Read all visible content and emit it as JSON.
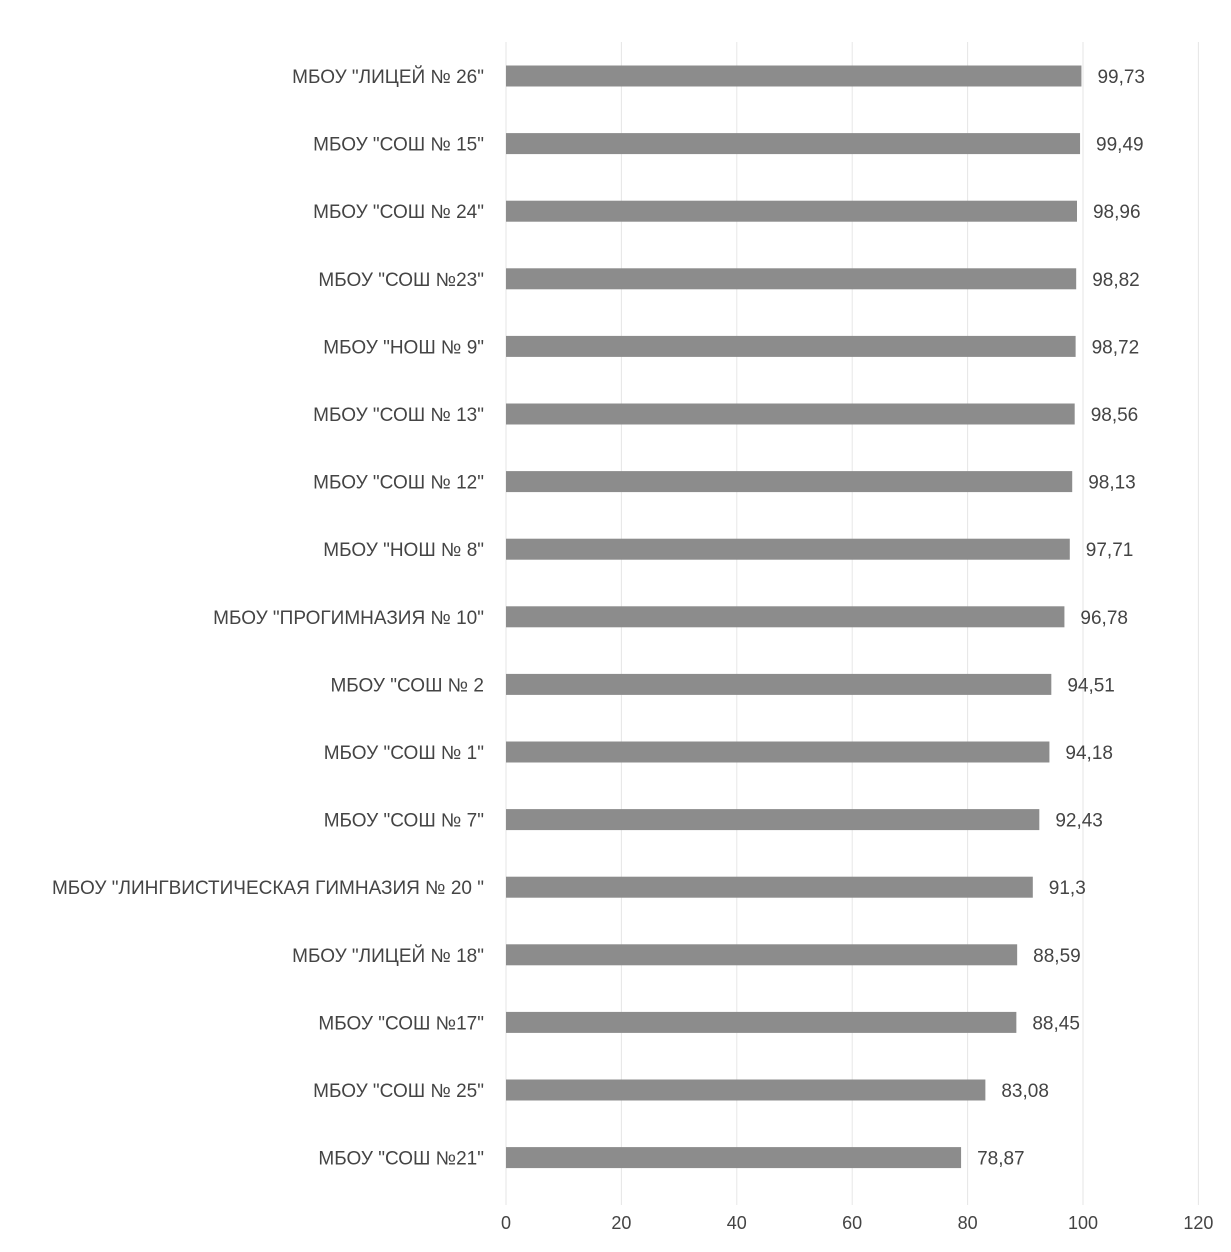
{
  "chart_data": {
    "type": "bar",
    "orientation": "horizontal",
    "title": "",
    "xlabel": "",
    "ylabel": "",
    "xlim": [
      0,
      120
    ],
    "x_ticks": [
      "0",
      "20",
      "40",
      "60",
      "80",
      "100",
      "120"
    ],
    "grid": true,
    "legend": "none",
    "bar_color": "#8c8c8c",
    "categories": [
      "МБОУ \"ЛИЦЕЙ № 26\"",
      "МБОУ \"СОШ № 15\"",
      "МБОУ \"СОШ № 24\"",
      "МБОУ \"СОШ №23\"",
      "МБОУ \"НОШ № 9\"",
      "МБОУ \"СОШ № 13\"",
      "МБОУ \"СОШ № 12\"",
      "МБОУ \"НОШ № 8\"",
      "МБОУ \"ПРОГИМНАЗИЯ № 10\"",
      "МБОУ \"СОШ № 2",
      "МБОУ \"СОШ № 1\"",
      "МБОУ \"СОШ № 7\"",
      "МБОУ \"ЛИНГВИСТИЧЕСКАЯ ГИМНАЗИЯ № 20 \"",
      "МБОУ \"ЛИЦЕЙ № 18\"",
      "МБОУ \"СОШ №17\"",
      "МБОУ \"СОШ № 25\"",
      "МБОУ \"СОШ №21\""
    ],
    "values": [
      99.73,
      99.49,
      98.96,
      98.82,
      98.72,
      98.56,
      98.13,
      97.71,
      96.78,
      94.51,
      94.18,
      92.43,
      91.3,
      88.59,
      88.45,
      83.08,
      78.87
    ],
    "value_labels": [
      "99,73",
      "99,49",
      "98,96",
      "98,82",
      "98,72",
      "98,56",
      "98,13",
      "97,71",
      "96,78",
      "94,51",
      "94,18",
      "92,43",
      "91,3",
      "88,59",
      "88,45",
      "83,08",
      "78,87"
    ]
  }
}
